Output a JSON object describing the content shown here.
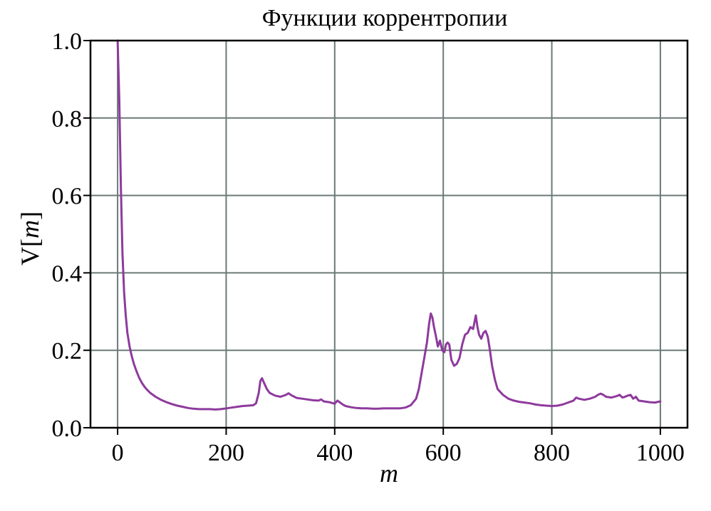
{
  "chart_data": {
    "type": "line",
    "title": "Функции коррентропии",
    "xlabel": "m",
    "ylabel_main": "V[",
    "ylabel_italic": "m",
    "ylabel_end": "]",
    "xlim": [
      -50,
      1050
    ],
    "ylim": [
      0,
      1
    ],
    "xticks": [
      0,
      200,
      400,
      600,
      800,
      1000
    ],
    "xtick_labels": [
      "0",
      "200",
      "400",
      "600",
      "800",
      "1000"
    ],
    "yticks": [
      0,
      0.2,
      0.4,
      0.6,
      0.8,
      1.0
    ],
    "ytick_labels": [
      "0.0",
      "0.2",
      "0.4",
      "0.6",
      "0.8",
      "1.0"
    ],
    "grid": true,
    "line_color": "#8e3a9d",
    "grid_color": "#6b7a78",
    "series": [
      {
        "x": [
          0,
          3,
          6,
          9,
          12,
          15,
          18,
          22,
          26,
          30,
          35,
          40,
          45,
          50,
          55,
          60,
          70,
          80,
          90,
          100,
          110,
          120,
          130,
          140,
          150,
          160,
          170,
          180,
          190,
          200,
          210,
          220,
          230,
          240,
          250,
          255,
          260,
          263,
          266,
          270,
          275,
          280,
          290,
          300,
          310,
          315,
          320,
          330,
          340,
          350,
          360,
          370,
          375,
          380,
          390,
          400,
          405,
          410,
          415,
          420,
          430,
          440,
          450,
          460,
          470,
          480,
          490,
          500,
          510,
          520,
          530,
          540,
          550,
          555,
          560,
          565,
          570,
          574,
          577,
          580,
          583,
          586,
          590,
          594,
          598,
          602,
          605,
          608,
          611,
          615,
          620,
          625,
          630,
          635,
          640,
          645,
          650,
          655,
          660,
          663,
          666,
          670,
          674,
          678,
          682,
          686,
          690,
          695,
          700,
          710,
          720,
          730,
          740,
          750,
          760,
          770,
          780,
          790,
          800,
          810,
          820,
          830,
          840,
          845,
          850,
          860,
          870,
          880,
          885,
          890,
          895,
          900,
          910,
          920,
          925,
          930,
          935,
          940,
          945,
          950,
          955,
          960,
          970,
          980,
          990,
          1000
        ],
        "y": [
          1.0,
          0.85,
          0.62,
          0.45,
          0.35,
          0.29,
          0.245,
          0.21,
          0.185,
          0.165,
          0.145,
          0.128,
          0.115,
          0.105,
          0.097,
          0.09,
          0.08,
          0.072,
          0.066,
          0.061,
          0.057,
          0.054,
          0.051,
          0.049,
          0.048,
          0.048,
          0.048,
          0.047,
          0.048,
          0.05,
          0.052,
          0.054,
          0.056,
          0.057,
          0.058,
          0.063,
          0.09,
          0.12,
          0.128,
          0.115,
          0.1,
          0.09,
          0.083,
          0.08,
          0.085,
          0.089,
          0.084,
          0.077,
          0.075,
          0.073,
          0.071,
          0.07,
          0.073,
          0.068,
          0.066,
          0.062,
          0.07,
          0.065,
          0.06,
          0.056,
          0.053,
          0.051,
          0.05,
          0.05,
          0.049,
          0.049,
          0.05,
          0.05,
          0.05,
          0.05,
          0.052,
          0.058,
          0.075,
          0.1,
          0.14,
          0.18,
          0.22,
          0.27,
          0.295,
          0.285,
          0.26,
          0.24,
          0.21,
          0.225,
          0.2,
          0.195,
          0.215,
          0.22,
          0.215,
          0.175,
          0.16,
          0.165,
          0.18,
          0.215,
          0.24,
          0.245,
          0.26,
          0.255,
          0.29,
          0.26,
          0.24,
          0.23,
          0.245,
          0.25,
          0.235,
          0.2,
          0.16,
          0.125,
          0.1,
          0.085,
          0.075,
          0.07,
          0.067,
          0.065,
          0.063,
          0.06,
          0.058,
          0.057,
          0.056,
          0.057,
          0.06,
          0.065,
          0.07,
          0.078,
          0.075,
          0.072,
          0.075,
          0.08,
          0.085,
          0.088,
          0.085,
          0.08,
          0.078,
          0.082,
          0.085,
          0.078,
          0.08,
          0.083,
          0.085,
          0.075,
          0.08,
          0.07,
          0.068,
          0.066,
          0.065,
          0.068
        ]
      }
    ]
  }
}
